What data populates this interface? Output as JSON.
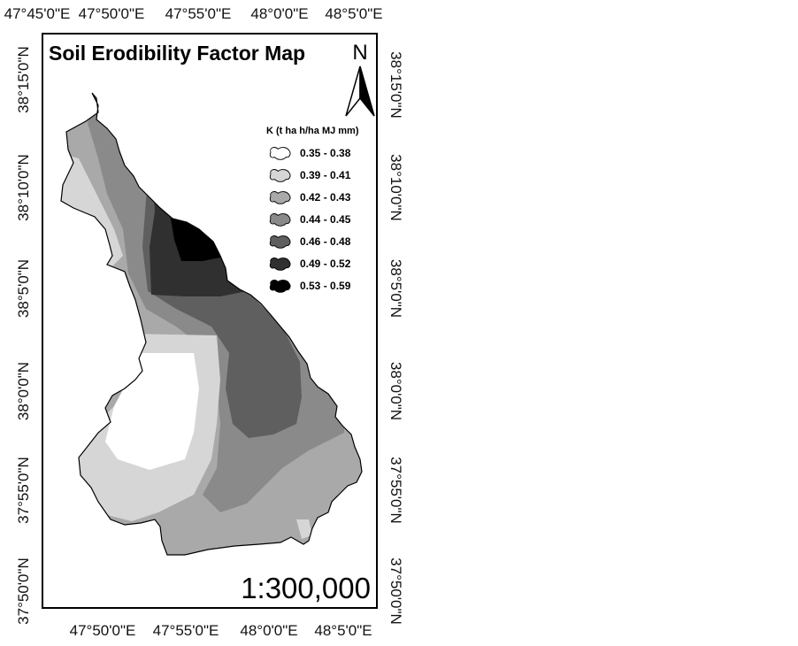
{
  "map": {
    "title": "Soil Erodibility Factor Map",
    "scale": "1:300,000",
    "north_label": "N"
  },
  "legend": {
    "title": "K (t ha h/ha MJ mm)",
    "items": [
      {
        "label": "0.35 - 0.38",
        "color": "#ffffff"
      },
      {
        "label": "0.39 - 0.41",
        "color": "#d6d6d6"
      },
      {
        "label": "0.42 - 0.43",
        "color": "#a9a9a9"
      },
      {
        "label": "0.44 - 0.45",
        "color": "#8a8a8a"
      },
      {
        "label": "0.46 - 0.48",
        "color": "#5f5f5f"
      },
      {
        "label": "0.49 - 0.52",
        "color": "#303030"
      },
      {
        "label": "0.53 - 0.59",
        "color": "#000000"
      }
    ]
  },
  "axes": {
    "top": [
      "47°45'0\"E",
      "47°50'0\"E",
      "47°55'0\"E",
      "48°0'0\"E",
      "48°5'0\"E"
    ],
    "bottom": [
      "47°50'0\"E",
      "47°55'0\"E",
      "48°0'0\"E",
      "48°5'0\"E"
    ],
    "left": [
      "38°15'0\"N",
      "38°10'0\"N",
      "38°5'0\"N",
      "38°0'0\"N",
      "37°55'0\"N",
      "37°50'0\"N"
    ],
    "right": [
      "38°15'0\"N",
      "38°10'0\"N",
      "38°5'0\"N",
      "38°0'0\"N",
      "37°55'0\"N",
      "37°50'0\"N"
    ]
  }
}
